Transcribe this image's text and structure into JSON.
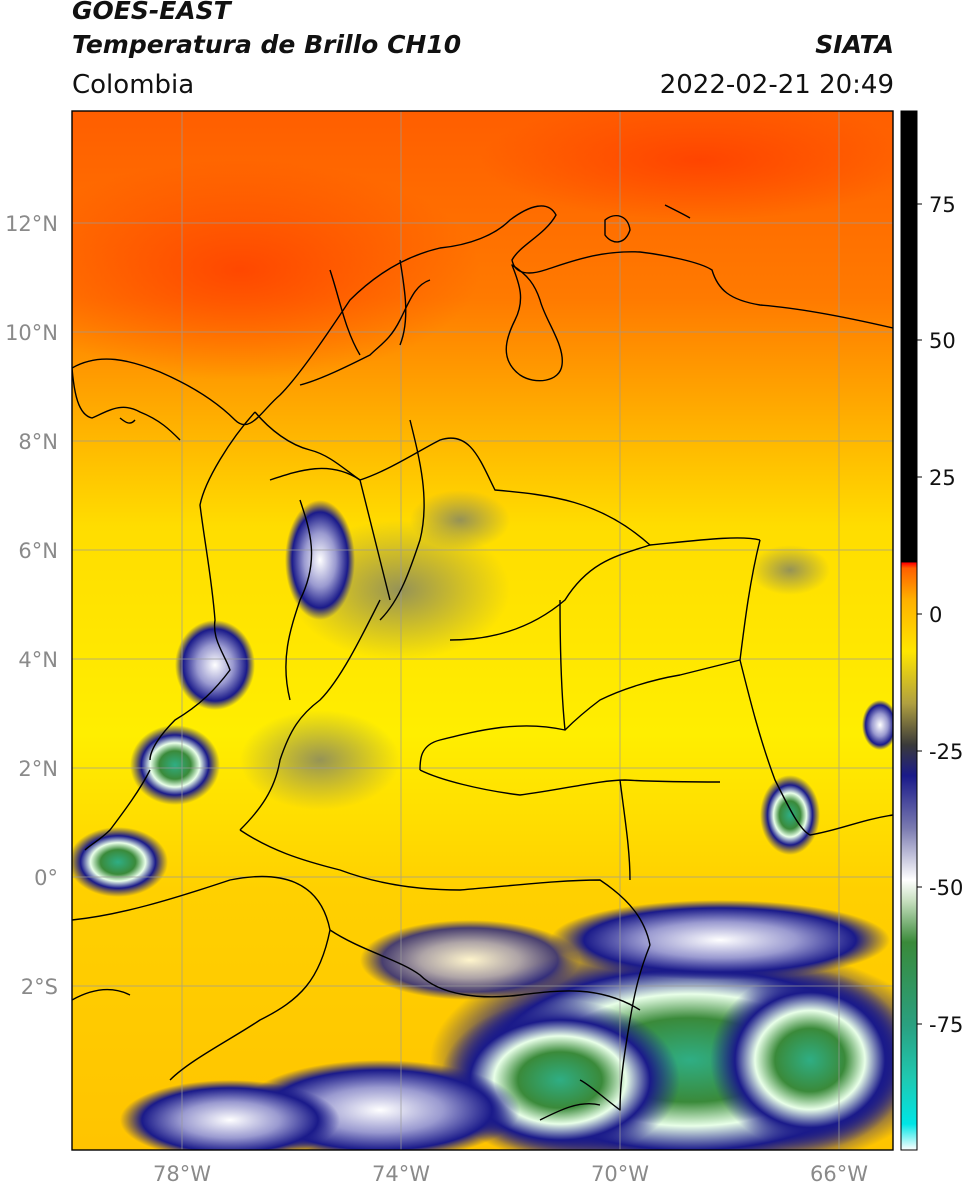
{
  "header": {
    "title_line1": "GOES-EAST",
    "title_line2": "Temperatura de Brillo CH10",
    "organization": "SIATA",
    "region": "Colombia",
    "datetime": "2022-02-21 20:49"
  },
  "map": {
    "latitude_labels": [
      "12°N",
      "10°N",
      "8°N",
      "6°N",
      "4°N",
      "2°N",
      "0°",
      "2°S"
    ],
    "longitude_labels": [
      "78°W",
      "74°W",
      "70°W",
      "66°W"
    ],
    "gridlines": true,
    "colors": {
      "warm": "#ff5a00",
      "mid": "#ffe600",
      "cold": "#1a1a8a",
      "very_cold": "#3a8a3a",
      "borders": "#000000"
    }
  },
  "colorbar": {
    "tick_labels": [
      "75",
      "50",
      "25",
      "0",
      "-25",
      "-50",
      "-75"
    ],
    "range": [
      -95,
      90
    ],
    "colors": [
      "#ffffff",
      "#00e5e5",
      "#2aa080",
      "#3a8a3a",
      "#ffffff",
      "#1a1a8a",
      "#ffe600",
      "#ff9a00",
      "#ff0000",
      "#000000"
    ]
  }
}
